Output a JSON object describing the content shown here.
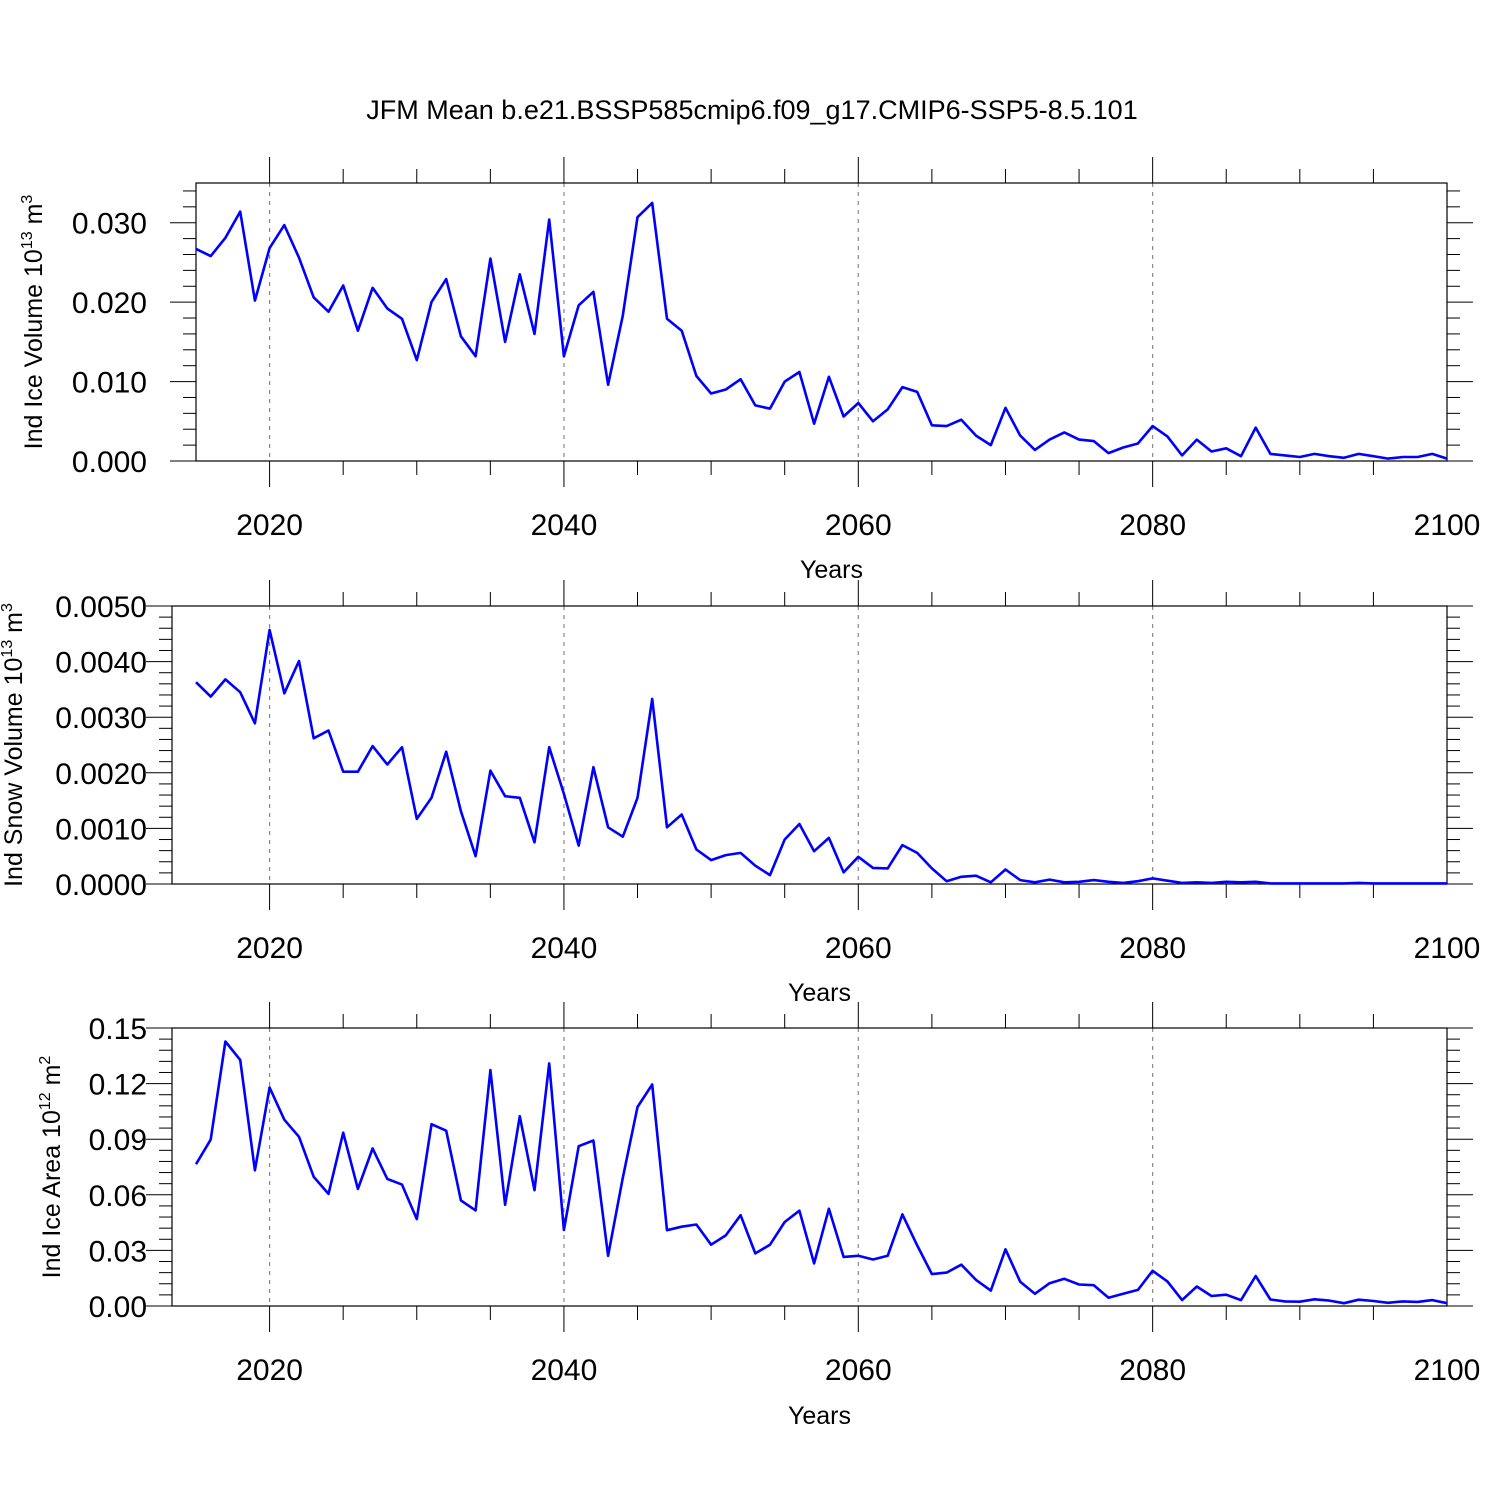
{
  "figure": {
    "title": "JFM Mean b.e21.BSSP585cmip6.f09_g17.CMIP6-SSP5-8.5.101",
    "line_color": "#0000ff",
    "grid_color": "#888888"
  },
  "chart_data": [
    {
      "type": "line",
      "title": "JFM Mean b.e21.BSSP585cmip6.f09_g17.CMIP6-SSP5-8.5.101",
      "xlabel": "Years",
      "ylabel": "Ind Ice Volume 10",
      "ylabel_exp": "13",
      "ylabel_unit": " m",
      "ylabel_unit_exp": "3",
      "xlim": [
        2015,
        2100
      ],
      "ylim": [
        0,
        0.035
      ],
      "yticks": [
        0.0,
        0.01,
        0.02,
        0.03
      ],
      "ytick_labels": [
        "0.000",
        "0.010",
        "0.020",
        "0.030"
      ],
      "xticks": [
        2020,
        2040,
        2060,
        2080,
        2100
      ],
      "xtick_labels": [
        "2020",
        "2040",
        "2060",
        "2080",
        "2100"
      ],
      "x_start": 2015,
      "values": [
        0.0267,
        0.0258,
        0.0281,
        0.0314,
        0.0202,
        0.0268,
        0.0297,
        0.0256,
        0.0206,
        0.0188,
        0.0221,
        0.0164,
        0.0218,
        0.0192,
        0.0179,
        0.0127,
        0.02,
        0.0229,
        0.0157,
        0.0132,
        0.0255,
        0.015,
        0.0235,
        0.016,
        0.0304,
        0.0132,
        0.0196,
        0.0213,
        0.0096,
        0.0183,
        0.0307,
        0.0325,
        0.0179,
        0.0164,
        0.0107,
        0.0085,
        0.009,
        0.0103,
        0.007,
        0.0066,
        0.01,
        0.0112,
        0.0047,
        0.0106,
        0.0056,
        0.0073,
        0.005,
        0.0065,
        0.0093,
        0.0087,
        0.0045,
        0.0044,
        0.0052,
        0.0032,
        0.002,
        0.0067,
        0.0032,
        0.0014,
        0.0027,
        0.0036,
        0.0027,
        0.0025,
        0.001,
        0.0017,
        0.0022,
        0.0044,
        0.0031,
        0.0007,
        0.0027,
        0.0012,
        0.0016,
        0.0006,
        0.0042,
        0.0009,
        0.0007,
        0.0005,
        0.0009,
        0.0006,
        0.0004,
        0.0009,
        0.0006,
        0.0003,
        0.0005,
        0.0005,
        0.0009,
        0.0003
      ]
    },
    {
      "type": "line",
      "xlabel": "Years",
      "ylabel": "Ind Snow Volume 10",
      "ylabel_exp": "13",
      "ylabel_unit": " m",
      "ylabel_unit_exp": "3",
      "xlim": [
        2015,
        2100
      ],
      "ylim": [
        0,
        0.005
      ],
      "yticks": [
        0.0,
        0.001,
        0.002,
        0.003,
        0.004,
        0.005
      ],
      "ytick_labels": [
        "0.0000",
        "0.0010",
        "0.0020",
        "0.0030",
        "0.0040",
        "0.0050"
      ],
      "xticks": [
        2020,
        2040,
        2060,
        2080,
        2100
      ],
      "xtick_labels": [
        "2020",
        "2040",
        "2060",
        "2080",
        "2100"
      ],
      "x_start": 2015,
      "values": [
        0.00363,
        0.00337,
        0.00368,
        0.00345,
        0.00289,
        0.00457,
        0.00343,
        0.00401,
        0.00262,
        0.00276,
        0.00202,
        0.00202,
        0.00248,
        0.00215,
        0.00246,
        0.00117,
        0.00155,
        0.00238,
        0.00131,
        0.0005,
        0.00204,
        0.00158,
        0.00155,
        0.00075,
        0.00246,
        0.00162,
        0.00069,
        0.0021,
        0.00102,
        0.00085,
        0.00155,
        0.00333,
        0.00102,
        0.00125,
        0.00062,
        0.00043,
        0.00052,
        0.00056,
        0.00033,
        0.00016,
        0.0008,
        0.00108,
        0.00059,
        0.00083,
        0.00021,
        0.00049,
        0.00029,
        0.00028,
        0.0007,
        0.00056,
        0.00028,
        5e-05,
        0.00013,
        0.00015,
        3e-05,
        0.00026,
        7e-05,
        3e-05,
        8e-05,
        3e-05,
        4e-05,
        7e-05,
        4e-05,
        2e-05,
        5e-05,
        0.0001,
        6e-05,
        2e-05,
        3e-05,
        2e-05,
        4e-05,
        3e-05,
        4e-05,
        1e-05,
        1e-05,
        1e-05,
        1e-05,
        1e-05,
        1e-05,
        2e-05,
        1e-05,
        1e-05,
        1e-05,
        1e-05,
        1e-05,
        1e-05
      ]
    },
    {
      "type": "line",
      "xlabel": "Years",
      "ylabel": "Ind Ice Area 10",
      "ylabel_exp": "12",
      "ylabel_unit": " m",
      "ylabel_unit_exp": "2",
      "xlim": [
        2015,
        2100
      ],
      "ylim": [
        0,
        0.15
      ],
      "yticks": [
        0.0,
        0.03,
        0.06,
        0.09,
        0.12,
        0.15
      ],
      "ytick_labels": [
        "0.00",
        "0.03",
        "0.06",
        "0.09",
        "0.12",
        "0.15"
      ],
      "xticks": [
        2020,
        2040,
        2060,
        2080,
        2100
      ],
      "xtick_labels": [
        "2020",
        "2040",
        "2060",
        "2080",
        "2100"
      ],
      "x_start": 2015,
      "values": [
        0.0765,
        0.0898,
        0.1427,
        0.1328,
        0.0732,
        0.1179,
        0.1005,
        0.0913,
        0.0697,
        0.0605,
        0.0935,
        0.0632,
        0.085,
        0.0686,
        0.0655,
        0.0469,
        0.0981,
        0.0946,
        0.057,
        0.0516,
        0.1273,
        0.0546,
        0.1024,
        0.0625,
        0.1309,
        0.041,
        0.0862,
        0.0893,
        0.0271,
        0.0692,
        0.1074,
        0.1195,
        0.0409,
        0.0428,
        0.044,
        0.0331,
        0.0381,
        0.049,
        0.0284,
        0.0331,
        0.0453,
        0.0514,
        0.023,
        0.0525,
        0.0265,
        0.0271,
        0.0251,
        0.0271,
        0.0494,
        0.0327,
        0.0172,
        0.018,
        0.0223,
        0.0141,
        0.0083,
        0.0306,
        0.0131,
        0.0066,
        0.0123,
        0.0147,
        0.0116,
        0.0112,
        0.0045,
        0.0066,
        0.0087,
        0.019,
        0.0133,
        0.0032,
        0.0105,
        0.0054,
        0.0061,
        0.0032,
        0.0162,
        0.0035,
        0.0025,
        0.0023,
        0.0036,
        0.0029,
        0.0015,
        0.0034,
        0.0027,
        0.0017,
        0.0025,
        0.0022,
        0.0032,
        0.0015
      ]
    }
  ]
}
